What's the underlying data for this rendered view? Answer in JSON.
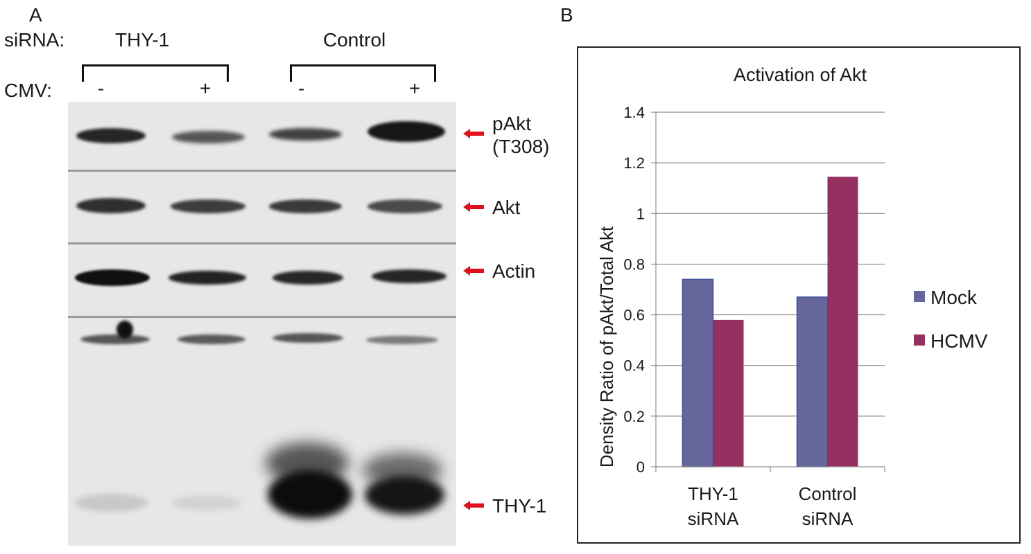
{
  "panel_a": {
    "letter": "A",
    "sirna_label": "siRNA:",
    "group_thy1": "THY-1",
    "group_control": "Control",
    "cmv_label": "CMV:",
    "lanes": [
      "-",
      "+",
      "-",
      "+"
    ],
    "rows": [
      {
        "label_line1": "pAkt",
        "label_line2": "(T308)"
      },
      {
        "label_line1": "Akt"
      },
      {
        "label_line1": "Actin"
      },
      {
        "label_line1": "THY-1"
      }
    ],
    "arrow_color": "#e0101a"
  },
  "panel_b": {
    "letter": "B"
  },
  "chart_data": {
    "type": "bar",
    "title": "Activation of Akt",
    "ylabel": "Density Ratio of pAkt/Total Akt",
    "xlabel": "",
    "ylim": [
      0,
      1.4
    ],
    "yticks": [
      "0",
      "0.2",
      "0.4",
      "0.6",
      "0.8",
      "1",
      "1.2",
      "1.4"
    ],
    "categories": [
      {
        "line1": "THY-1",
        "line2": "siRNA"
      },
      {
        "line1": "Control",
        "line2": "siRNA"
      }
    ],
    "series": [
      {
        "name": "Mock",
        "color": "#66659c",
        "values": [
          0.74,
          0.67
        ]
      },
      {
        "name": "HCMV",
        "color": "#963060",
        "values": [
          0.58,
          1.145
        ]
      }
    ],
    "grid": true,
    "legend": "right"
  }
}
